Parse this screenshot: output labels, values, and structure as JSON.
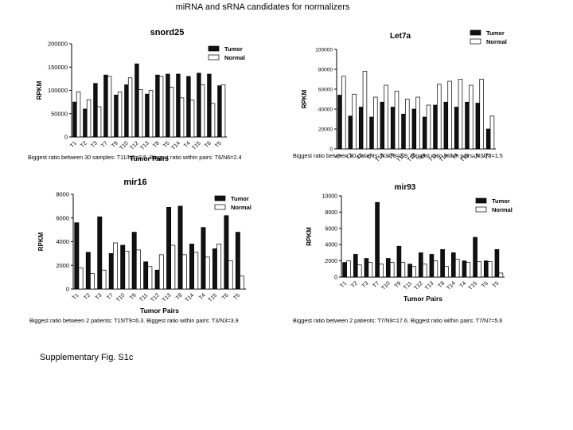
{
  "page": {
    "title": "miRNA and sRNA candidates for normalizers",
    "supplementary_label": "Supplementary  Fig. S1c"
  },
  "colors": {
    "tumor": "#111111",
    "normal": "#ffffff",
    "axis": "#000000"
  },
  "captions": [
    "Biggest ratio between 30 samples: T11/N3=2.5.  Biggest ratio within pairs: T6/N6=2.4",
    "Biggest ratio between 30 patients: N3/T9=3.9.  Biggest ratio within pairs: N3/T3=1.5",
    "Biggest ratio between 2 patients: T15/T9=6.3.  Biggest ratio within pairs: T3/N3=3.9",
    "Biggest ratio between 2 patients: T7/N9=17.6. Biggest ratio within pairs: T7/N7=5.6"
  ],
  "chart_data": [
    {
      "type": "bar",
      "title": "snord25",
      "xlabel": "Tumor Pairs",
      "ylabel": "RPKM",
      "ylim": [
        0,
        200000
      ],
      "yticks": [
        0,
        50000,
        100000,
        150000,
        200000
      ],
      "categories": [
        "T1",
        "T2",
        "T3",
        "T7",
        "T9",
        "T10",
        "T12",
        "T13",
        "T8",
        "T5",
        "T14",
        "T4",
        "T15",
        "T6",
        "T5"
      ],
      "series": [
        {
          "name": "Tumor",
          "values": [
            75000,
            60000,
            115000,
            133000,
            90000,
            112000,
            157000,
            92000,
            133000,
            135000,
            135000,
            130000,
            137000,
            135000,
            110000
          ]
        },
        {
          "name": "Normal",
          "values": [
            97000,
            80000,
            65000,
            130000,
            97000,
            127000,
            102000,
            100000,
            130000,
            107000,
            84000,
            79000,
            112000,
            72000,
            112000
          ]
        }
      ],
      "legend": "top-right",
      "grid": false
    },
    {
      "type": "bar",
      "title": "Let7a",
      "xlabel": "",
      "ylabel": "RPKM",
      "ylim": [
        0,
        100000
      ],
      "yticks": [
        0,
        20000,
        40000,
        60000,
        80000,
        100000
      ],
      "categories": [
        "T1",
        "T2",
        "T3",
        "T7",
        "T10",
        "T9",
        "T12",
        "T13",
        "T8",
        "T11",
        "T14",
        "T4",
        "T15",
        "T6",
        "T5"
      ],
      "series": [
        {
          "name": "Tumor",
          "values": [
            54000,
            33000,
            42000,
            32000,
            47000,
            42000,
            35000,
            40000,
            32000,
            44000,
            47000,
            42000,
            47000,
            46000,
            20000
          ]
        },
        {
          "name": "Normal",
          "values": [
            73000,
            55000,
            78000,
            52000,
            64000,
            58000,
            50000,
            52000,
            44000,
            65000,
            68000,
            70000,
            64000,
            70000,
            33000
          ]
        }
      ],
      "legend": "top-right",
      "grid": false
    },
    {
      "type": "bar",
      "title": "mir16",
      "xlabel": "Tumor Pairs",
      "ylabel": "RPKM",
      "ylim": [
        0,
        8000
      ],
      "yticks": [
        0,
        2000,
        4000,
        6000,
        8000
      ],
      "categories": [
        "T1",
        "T2",
        "T3",
        "T7",
        "T10",
        "T9",
        "T11",
        "T12",
        "T13",
        "T8",
        "T14",
        "T4",
        "T15",
        "T6",
        "T5"
      ],
      "series": [
        {
          "name": "Tumor",
          "values": [
            5600,
            3100,
            6100,
            3000,
            3700,
            4800,
            2300,
            1600,
            6900,
            7000,
            3800,
            5200,
            3400,
            6200,
            4800
          ]
        },
        {
          "name": "Normal",
          "values": [
            1800,
            1300,
            1600,
            3900,
            3200,
            3300,
            1900,
            2900,
            3700,
            2900,
            3100,
            2700,
            3800,
            2400,
            1100
          ]
        }
      ],
      "legend": "top-right",
      "grid": false
    },
    {
      "type": "bar",
      "title": "mir93",
      "xlabel": "Tumor Pairs",
      "ylabel": "RPKM",
      "ylim": [
        0,
        10000
      ],
      "yticks": [
        0,
        2000,
        4000,
        6000,
        8000,
        10000
      ],
      "categories": [
        "T1",
        "T2",
        "T3",
        "T7",
        "T10",
        "T9",
        "T11",
        "T12",
        "T13",
        "T8",
        "T14",
        "T4",
        "T15",
        "T6",
        "T5"
      ],
      "series": [
        {
          "name": "Tumor",
          "values": [
            1800,
            2800,
            2300,
            9200,
            2300,
            3800,
            1600,
            3000,
            2800,
            3400,
            3000,
            2000,
            4900,
            2000,
            3400
          ]
        },
        {
          "name": "Normal",
          "values": [
            2000,
            1500,
            1800,
            1600,
            1800,
            1800,
            1300,
            1600,
            2000,
            1300,
            2200,
            1800,
            1900,
            1900,
            500
          ]
        }
      ],
      "legend": "top-right",
      "grid": false
    }
  ]
}
